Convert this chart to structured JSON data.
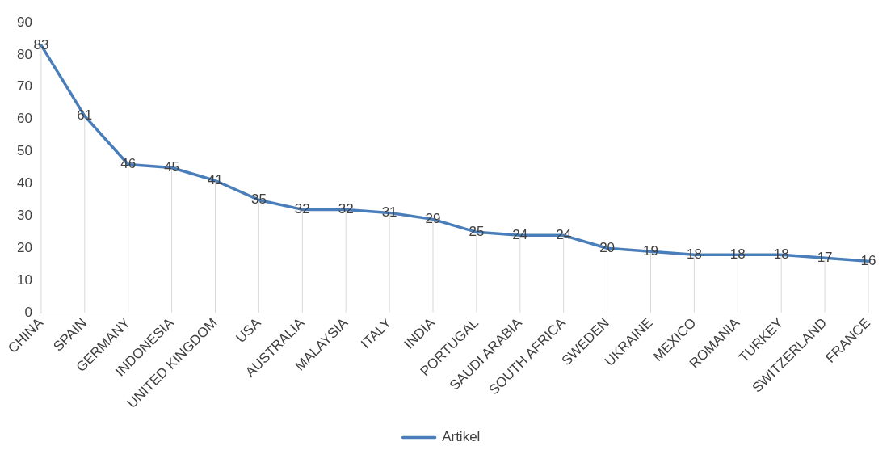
{
  "chart_data": {
    "type": "line",
    "categories": [
      "CHINA",
      "SPAIN",
      "GERMANY",
      "INDONESIA",
      "UNITED KINGDOM",
      "USA",
      "AUSTRALIA",
      "MALAYSIA",
      "ITALY",
      "INDIA",
      "PORTUGAL",
      "SAUDI ARABIA",
      "SOUTH AFRICA",
      "SWEDEN",
      "UKRAINE",
      "MEXICO",
      "ROMANIA",
      "TURKEY",
      "SWITZERLAND",
      "FRANCE"
    ],
    "series": [
      {
        "name": "Artikel",
        "color": "#4a7ebb",
        "values": [
          83,
          61,
          46,
          45,
          41,
          35,
          32,
          32,
          31,
          29,
          25,
          24,
          24,
          20,
          19,
          18,
          18,
          18,
          17,
          16
        ]
      }
    ],
    "ylim": [
      0,
      90
    ],
    "yticks": [
      0,
      10,
      20,
      30,
      40,
      50,
      60,
      70,
      80,
      90
    ],
    "grid": false,
    "legend": "bottom",
    "data_labels": true,
    "marker": "none",
    "line_style": "solid"
  }
}
